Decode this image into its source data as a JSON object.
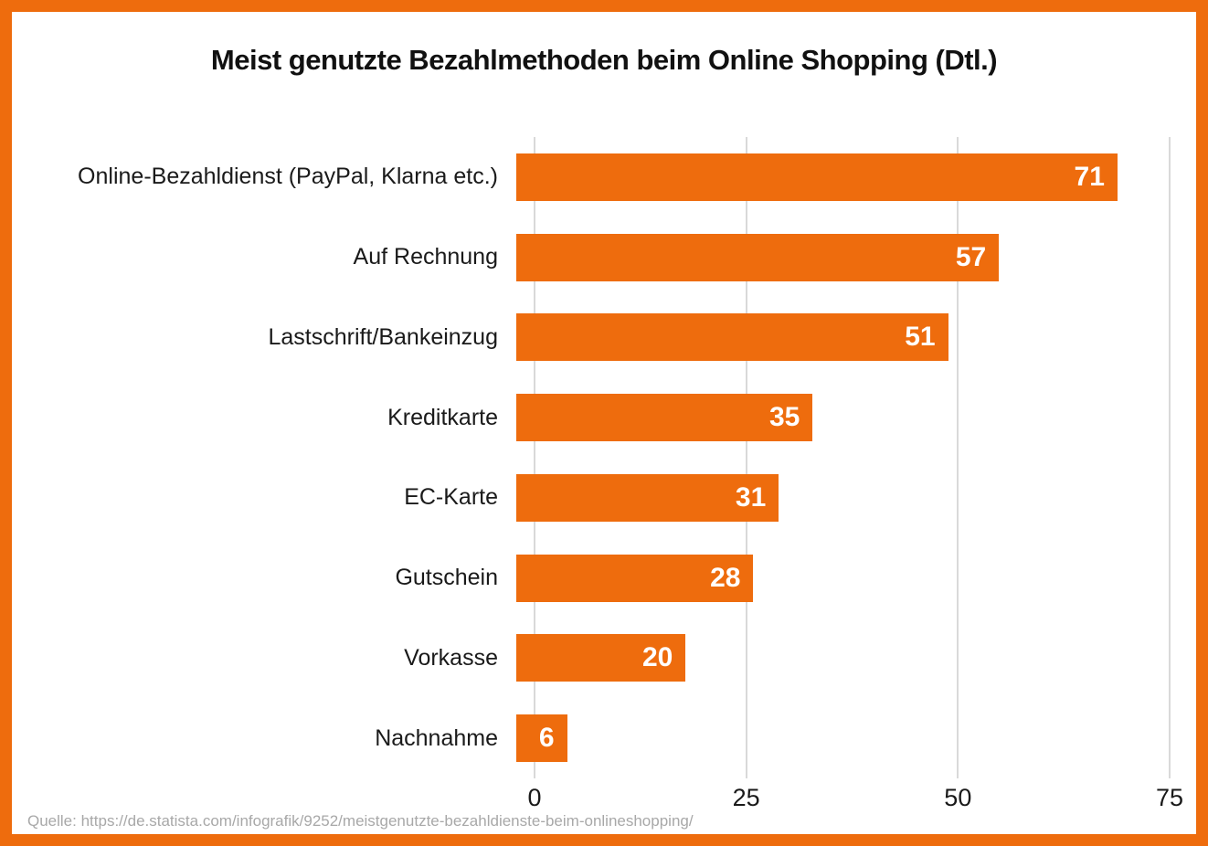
{
  "frame_color": "#EE6C0D",
  "chart_data": {
    "type": "bar",
    "orientation": "horizontal",
    "title": "Meist genutzte Bezahlmethoden beim Online Shopping (Dtl.)",
    "categories": [
      "Online-Bezahldienst (PayPal, Klarna etc.)",
      "Auf Rechnung",
      "Lastschrift/Bankeinzug",
      "Kreditkarte",
      "EC-Karte",
      "Gutschein",
      "Vorkasse",
      "Nachnahme"
    ],
    "values": [
      71,
      57,
      51,
      35,
      31,
      28,
      20,
      6
    ],
    "xlabel": "",
    "ylabel": "",
    "xlim": [
      0,
      75
    ],
    "x_ticks": [
      0,
      25,
      50,
      75
    ],
    "grid": true,
    "legend": "none",
    "bar_color": "#EE6C0D",
    "value_label_color": "#FFFFFF",
    "source": "Quelle: https://de.statista.com/infografik/9252/meistgenutzte-bezahldienste-beim-onlineshopping/"
  }
}
